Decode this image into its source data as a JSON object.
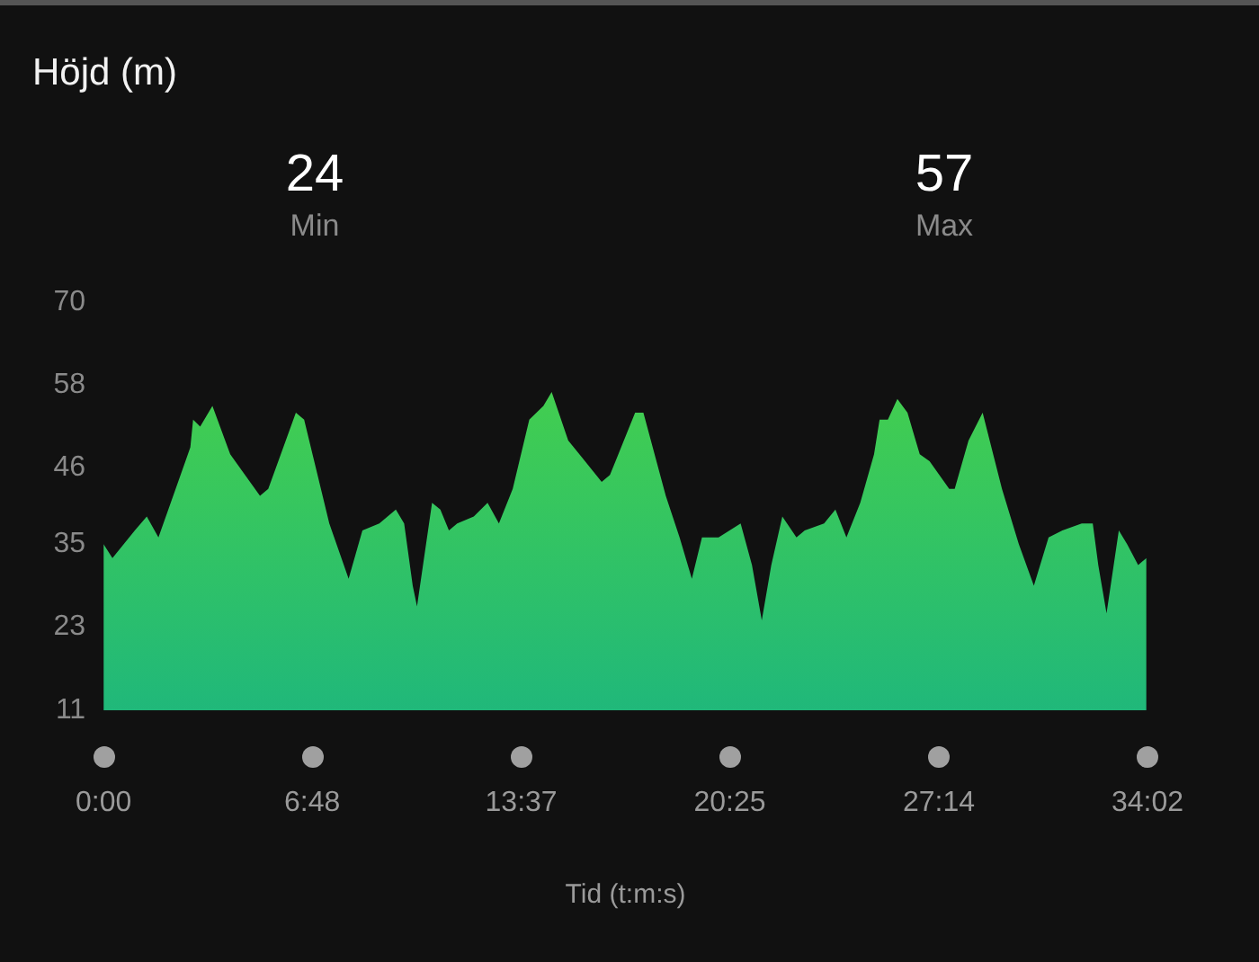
{
  "chart_data": {
    "type": "area",
    "title": "Höjd (m)",
    "xlabel": "Tid (t:m:s)",
    "annotations": [
      "24",
      "Min",
      "57",
      "Max"
    ],
    "xlim": [
      0,
      34.0333
    ],
    "xticks": [
      {
        "value": 0,
        "label": "0:00"
      },
      {
        "value": 6.8,
        "label": "6:48"
      },
      {
        "value": 13.6167,
        "label": "13:37"
      },
      {
        "value": 20.4167,
        "label": "20:25"
      },
      {
        "value": 27.2333,
        "label": "27:14"
      },
      {
        "value": 34.0333,
        "label": "34:02"
      }
    ],
    "ylim": [
      11,
      70
    ],
    "yticks": [
      11,
      23,
      35,
      46,
      58,
      70
    ],
    "grid": false,
    "legend": false,
    "series": [
      {
        "color": "#4cd444",
        "x": [
          0,
          0.29,
          1.02,
          1.41,
          1.79,
          2.19,
          2.83,
          2.92,
          3.15,
          3.55,
          4.13,
          5.1,
          5.37,
          6.27,
          6.54,
          7.36,
          7.99,
          8.44,
          8.99,
          9.53,
          9.8,
          10.08,
          10.22,
          10.71,
          10.98,
          11.26,
          11.53,
          12.07,
          12.52,
          12.89,
          13.34,
          13.88,
          14.34,
          14.61,
          15.15,
          15.88,
          16.24,
          16.51,
          17.33,
          17.6,
          18.33,
          18.78,
          19.18,
          19.51,
          20.05,
          20.77,
          21.14,
          21.46,
          21.77,
          22.13,
          22.59,
          22.86,
          23.49,
          23.86,
          24.22,
          24.67,
          25.12,
          25.3,
          25.57,
          25.88,
          26.21,
          26.61,
          26.93,
          27.57,
          27.75,
          28.2,
          28.66,
          29.29,
          29.84,
          30.33,
          30.81,
          31.26,
          31.89,
          32.25,
          32.43,
          32.7,
          33.1,
          33.37,
          33.73,
          34.0
        ],
        "values": [
          35,
          33,
          37,
          39,
          36,
          41,
          49,
          53,
          52,
          55,
          48,
          42,
          43,
          54,
          53,
          38,
          30,
          37,
          38,
          40,
          38,
          29,
          26,
          41,
          40,
          37,
          38,
          39,
          41,
          38,
          43,
          53,
          55,
          57,
          50,
          46,
          44,
          45,
          54,
          54,
          42,
          36,
          30,
          36,
          36,
          38,
          32,
          24,
          32,
          39,
          36,
          37,
          38,
          40,
          36,
          41,
          48,
          53,
          53,
          56,
          54,
          48,
          47,
          43,
          43,
          50,
          54,
          43,
          35,
          29,
          36,
          37,
          38,
          38,
          32,
          25,
          37,
          35,
          32,
          33
        ]
      }
    ]
  }
}
